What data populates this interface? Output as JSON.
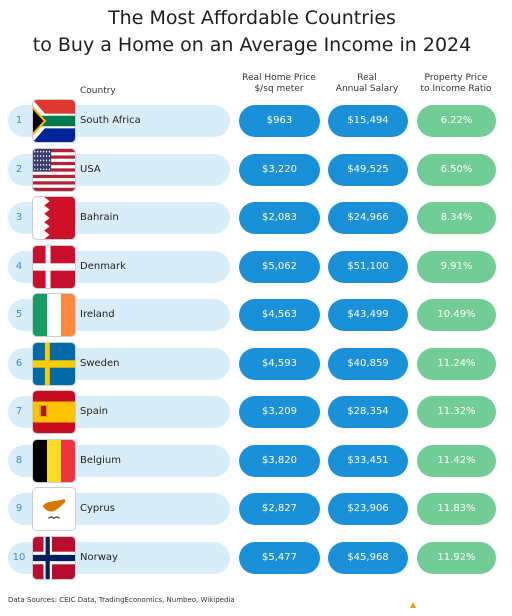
{
  "title_line1": "The Most Affordable Countries",
  "title_line2": "to Buy a Home on an Average Income in 2024",
  "headers": {
    "country": "Country",
    "price_line1": "Real Home Price",
    "price_line2": "$/sq meter",
    "salary_line1": "Real",
    "salary_line2": "Annual Salary",
    "ratio_line1": "Property Price",
    "ratio_line2": "to Income Ratio"
  },
  "colors": {
    "country_bar": "#d9edf8",
    "blue_pill": "#1a90d9",
    "green_pill": "#71cd95",
    "rank_text": "#3a8fd0"
  },
  "chart_data": {
    "type": "table",
    "columns": [
      "",
      "Country",
      "Real Home Price $/sq meter",
      "Real Annual Salary",
      "Property Price to Income Ratio"
    ],
    "rows": [
      {
        "rank": "1",
        "country": "South Africa",
        "flag": "south-africa-flag",
        "price": "$963",
        "salary": "$15,494",
        "ratio": "6.22%"
      },
      {
        "rank": "2",
        "country": "USA",
        "flag": "usa-flag",
        "price": "$3,220",
        "salary": "$49,525",
        "ratio": "6.50%"
      },
      {
        "rank": "3",
        "country": "Bahrain",
        "flag": "bahrain-flag",
        "price": "$2,083",
        "salary": "$24,966",
        "ratio": "8.34%"
      },
      {
        "rank": "4",
        "country": "Denmark",
        "flag": "denmark-flag",
        "price": "$5,062",
        "salary": "$51,100",
        "ratio": "9.91%"
      },
      {
        "rank": "5",
        "country": "Ireland",
        "flag": "ireland-flag",
        "price": "$4,563",
        "salary": "$43,499",
        "ratio": "10.49%"
      },
      {
        "rank": "6",
        "country": "Sweden",
        "flag": "sweden-flag",
        "price": "$4,593",
        "salary": "$40,859",
        "ratio": "11.24%"
      },
      {
        "rank": "7",
        "country": "Spain",
        "flag": "spain-flag",
        "price": "$3,209",
        "salary": "$28,354",
        "ratio": "11.32%"
      },
      {
        "rank": "8",
        "country": "Belgium",
        "flag": "belgium-flag",
        "price": "$3,820",
        "salary": "$33,451",
        "ratio": "11.42%"
      },
      {
        "rank": "9",
        "country": "Cyprus",
        "flag": "cyprus-flag",
        "price": "$2,827",
        "salary": "$23,906",
        "ratio": "11.83%"
      },
      {
        "rank": "10",
        "country": "Norway",
        "flag": "norway-flag",
        "price": "$5,477",
        "salary": "$45,968",
        "ratio": "11.92%"
      }
    ]
  },
  "sources": "Data Sources: CEIC Data, TradingEconomics, Numbeo, Wikipedia"
}
